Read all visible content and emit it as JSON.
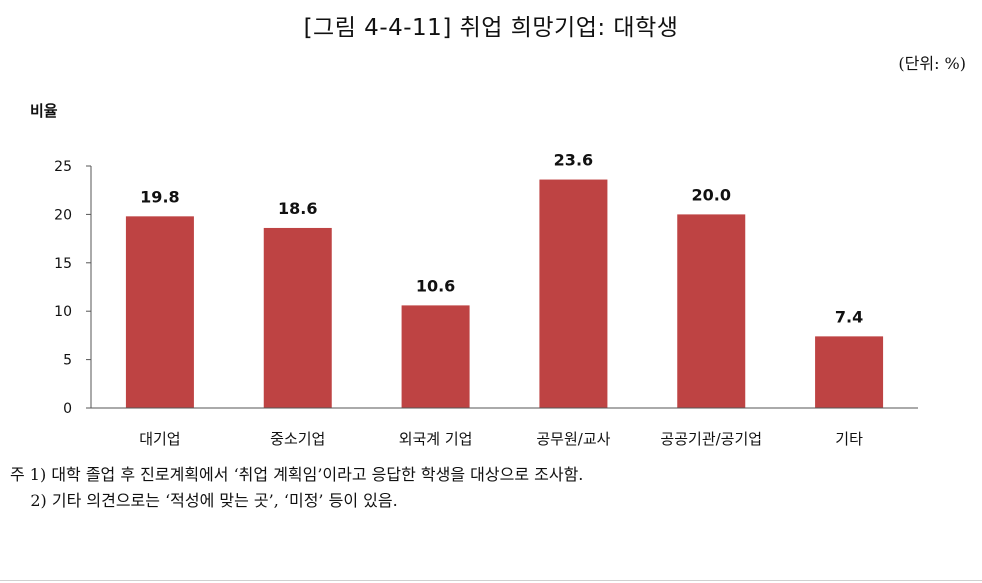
{
  "header": {
    "title": "[그림 4-4-11] 취업 희망기업: 대학생",
    "unit": "(단위: %)"
  },
  "notes": [
    "주 1) 대학 졸업 후 진로계획에서 ‘취업 계획임’이라고 응답한 학생을 대상으로 조사함.",
    "    2) 기타 의견으로는 ‘적성에 맞는 곳’, ‘미정’ 등이 있음."
  ],
  "chart_data": {
    "type": "bar",
    "title": "[그림 4-4-11] 취업 희망기업: 대학생",
    "ylabel": "비율",
    "xlabel": "",
    "categories": [
      "대기업",
      "중소기업",
      "외국계 기업",
      "공무원/교사",
      "공공기관/공기업",
      "기타"
    ],
    "values": [
      19.8,
      18.6,
      10.6,
      23.6,
      20.0,
      7.4
    ],
    "value_labels": [
      "19.8",
      "18.6",
      "10.6",
      "23.6",
      "20.0",
      "7.4"
    ],
    "ylim": [
      0,
      25
    ],
    "yticks": [
      0,
      5,
      10,
      15,
      20,
      25
    ],
    "grid": false,
    "legend": "none",
    "bar_color": "#be4343"
  }
}
